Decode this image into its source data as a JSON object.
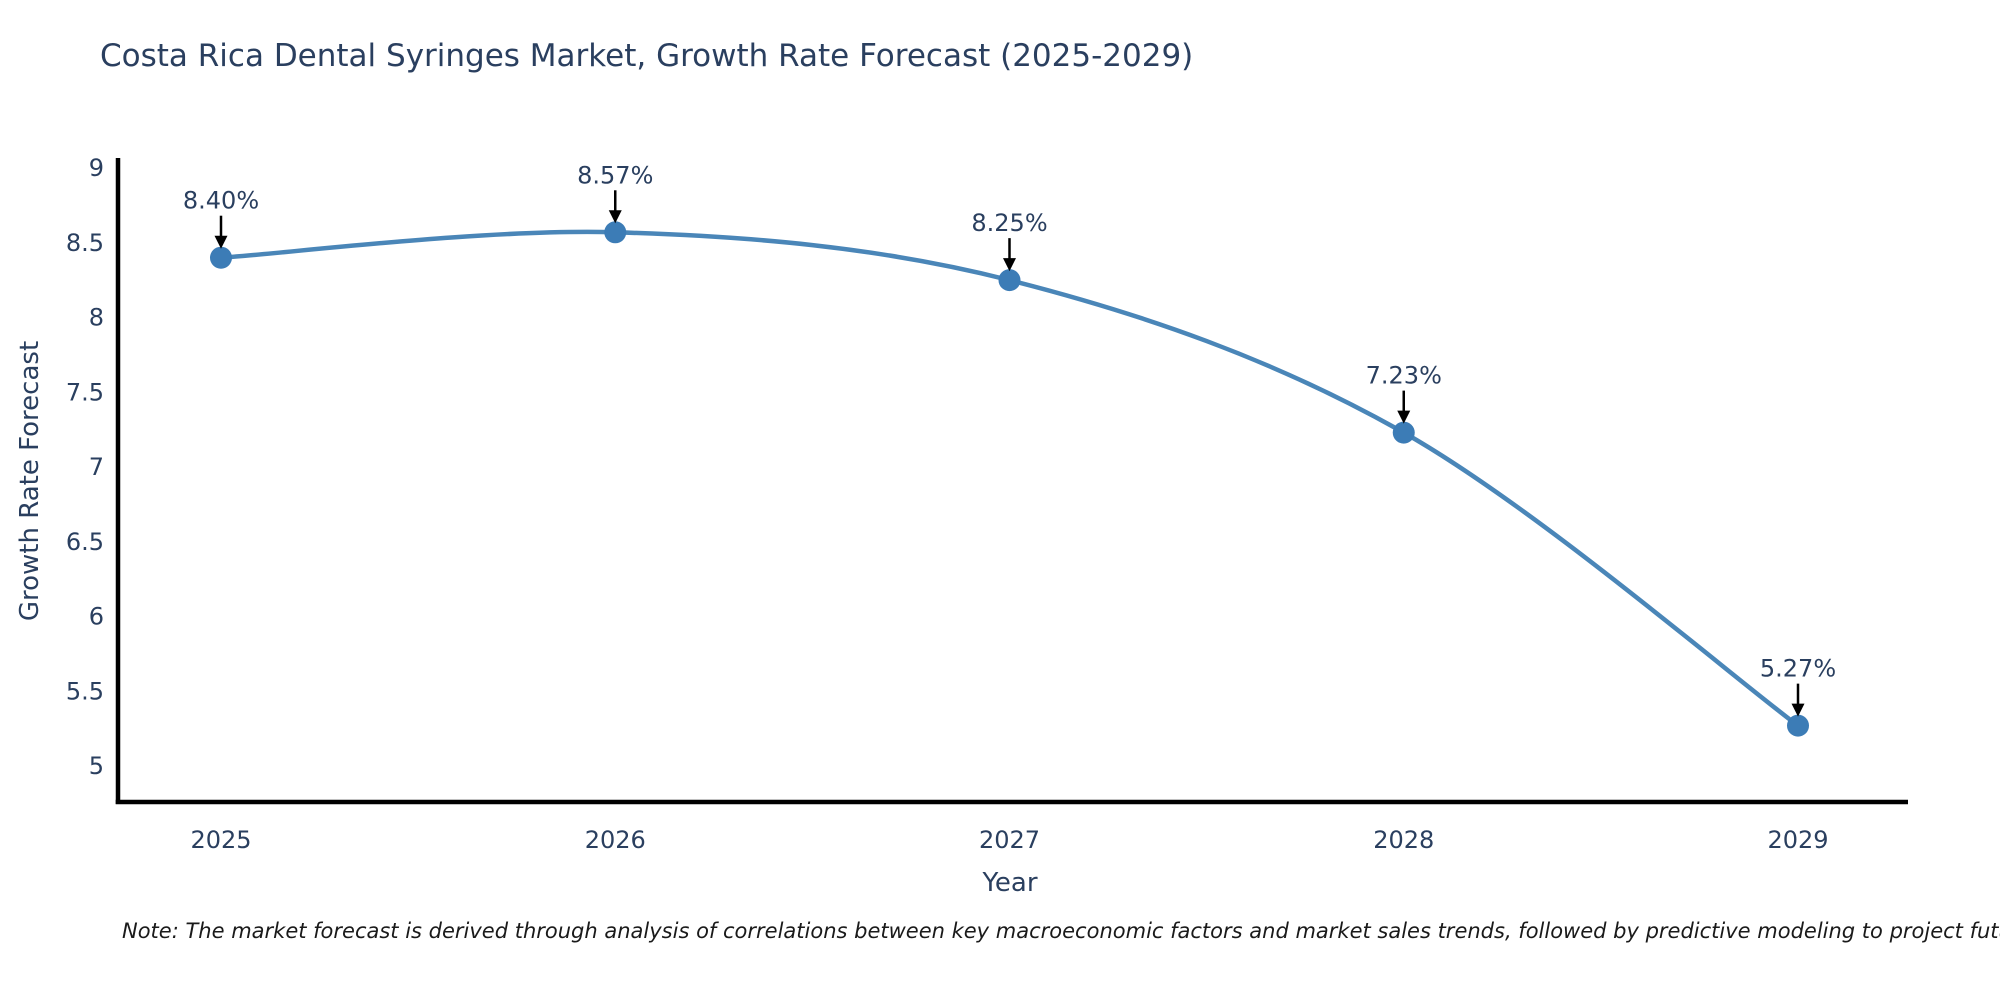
{
  "chart_data": {
    "type": "line",
    "title": "Costa Rica Dental Syringes Market, Growth Rate Forecast (2025-2029)",
    "x": [
      "2025",
      "2026",
      "2027",
      "2028",
      "2029"
    ],
    "series": [
      {
        "name": "Growth Rate Forecast",
        "values": [
          8.4,
          8.57,
          8.25,
          7.23,
          5.27
        ],
        "point_labels": [
          "8.40%",
          "8.57%",
          "8.25%",
          "7.23%",
          "5.27%"
        ]
      }
    ],
    "xlabel": "Year",
    "ylabel": "Growth Rate Forecast",
    "ytick_labels": [
      "9",
      "8.5",
      "8",
      "7.5",
      "7",
      "6.5",
      "6",
      "5.5",
      "5"
    ],
    "ytick_values": [
      9,
      8.5,
      8,
      7.5,
      7,
      6.5,
      6,
      5.5,
      5
    ],
    "ylim": [
      4.76,
      9.07
    ],
    "line_shape": "spline",
    "grid": false,
    "legend": "none",
    "colors": {
      "line": "#4a86b8",
      "marker": "#3c7cb6",
      "font": "#2a3f5f",
      "axis": "#000000",
      "annotation_arrow": "#000000",
      "annotation_text": "#2a3f5f"
    }
  },
  "note": {
    "text": "Note: The market forecast is derived through analysis of correlations between key macroeconomic factors and market sales trends, followed by predictive modeling to project future sales"
  }
}
